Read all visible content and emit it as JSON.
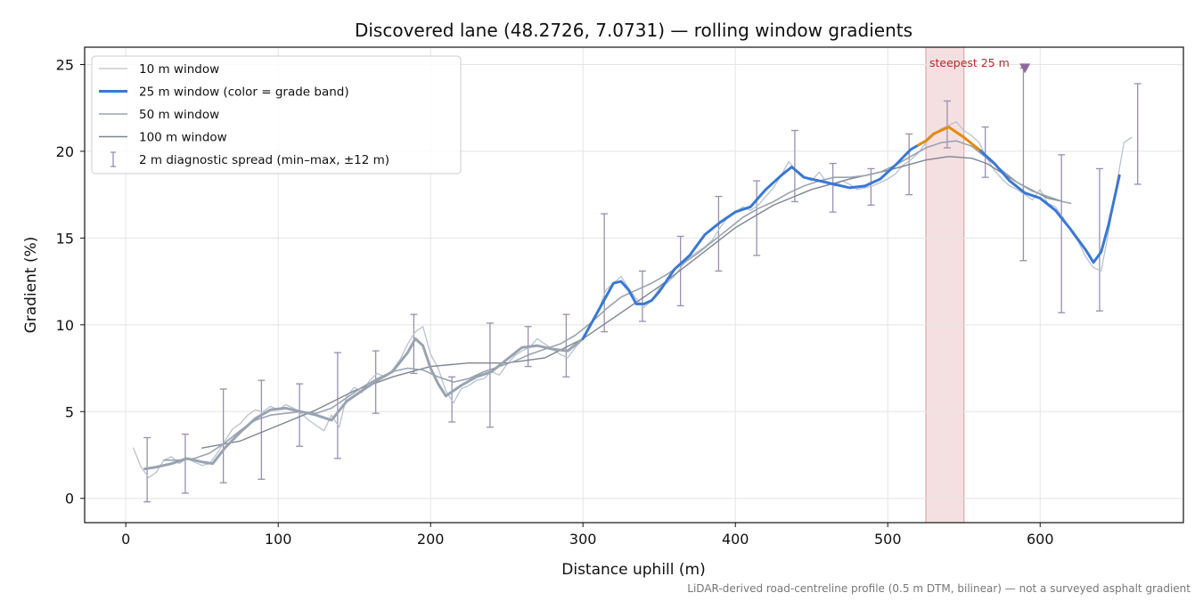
{
  "chart_data": {
    "type": "line",
    "title": "Discovered lane (48.2726, 7.0731) — rolling window gradients",
    "xlabel": "Distance uphill (m)",
    "ylabel": "Gradient (%)",
    "xlim": [
      -27,
      694
    ],
    "ylim": [
      -1.4,
      26
    ],
    "x_ticks": [
      0,
      100,
      200,
      300,
      400,
      500,
      600
    ],
    "y_ticks": [
      0,
      5,
      10,
      15,
      20,
      25
    ],
    "grid": true,
    "legend_position": "top-left",
    "footnote": "LiDAR-derived road-centreline profile (0.5 m DTM, bilinear) — not a surveyed asphalt gradient",
    "highlight": {
      "x0": 525,
      "x1": 550,
      "label": "steepest 25 m",
      "color": "#e8b4b8"
    },
    "marker": {
      "x": 590,
      "y": 24.8,
      "color": "#8e6a9a"
    },
    "colors": {
      "w10": "#b9c2cf",
      "w25": "#3a78d4",
      "w25_gray": "#99a3b1",
      "w25_orange": "#e38b0b",
      "w50": "#9aa3b0",
      "w100": "#7d8591",
      "spread": "#9a8fb0"
    },
    "series": [
      {
        "name": "10 m window",
        "key": "w10",
        "x": [
          5,
          10,
          15,
          20,
          25,
          30,
          35,
          40,
          45,
          50,
          55,
          60,
          65,
          70,
          75,
          80,
          85,
          90,
          95,
          100,
          105,
          110,
          115,
          120,
          125,
          130,
          135,
          140,
          145,
          150,
          155,
          160,
          165,
          170,
          175,
          180,
          185,
          190,
          195,
          200,
          205,
          210,
          215,
          220,
          225,
          230,
          235,
          240,
          245,
          250,
          255,
          260,
          265,
          270,
          275,
          280,
          285,
          290,
          295,
          300,
          305,
          310,
          315,
          320,
          325,
          330,
          335,
          340,
          345,
          350,
          355,
          360,
          365,
          370,
          375,
          380,
          385,
          390,
          395,
          400,
          405,
          410,
          415,
          420,
          425,
          430,
          435,
          440,
          445,
          450,
          455,
          460,
          465,
          470,
          475,
          480,
          485,
          490,
          495,
          500,
          505,
          510,
          515,
          520,
          525,
          530,
          535,
          540,
          545,
          550,
          555,
          560,
          565,
          570,
          575,
          580,
          585,
          590,
          595,
          600,
          605,
          610,
          615,
          620,
          625,
          630,
          635,
          640,
          645,
          650,
          655,
          660
        ],
        "y": [
          2.9,
          1.8,
          1.2,
          1.5,
          2.2,
          2.4,
          2.0,
          2.3,
          2.1,
          1.9,
          2.0,
          2.6,
          3.3,
          4.0,
          4.3,
          4.8,
          5.1,
          5.0,
          5.3,
          5.1,
          5.4,
          5.2,
          4.9,
          4.5,
          4.2,
          3.9,
          4.8,
          4.1,
          5.9,
          6.4,
          6.1,
          6.8,
          7.2,
          7.0,
          7.4,
          8.0,
          8.9,
          9.6,
          9.9,
          8.3,
          7.5,
          6.2,
          5.5,
          6.3,
          6.5,
          6.8,
          6.9,
          7.3,
          7.1,
          7.7,
          8.2,
          8.5,
          8.7,
          9.2,
          8.9,
          8.6,
          8.3,
          8.1,
          8.7,
          9.2,
          10.1,
          10.8,
          12.0,
          12.4,
          12.8,
          12.1,
          11.5,
          11.0,
          11.4,
          12.1,
          12.4,
          12.8,
          13.4,
          13.9,
          14.2,
          14.5,
          14.9,
          15.6,
          16.2,
          16.5,
          16.8,
          16.6,
          16.9,
          17.4,
          17.9,
          18.6,
          19.4,
          18.9,
          18.5,
          18.3,
          18.8,
          18.2,
          18.0,
          18.3,
          18.1,
          17.8,
          17.9,
          18.0,
          18.2,
          18.4,
          18.7,
          19.2,
          19.5,
          19.9,
          20.5,
          20.9,
          21.3,
          21.5,
          21.7,
          21.2,
          20.9,
          20.5,
          19.6,
          18.9,
          18.4,
          18.0,
          17.8,
          17.5,
          17.2,
          17.8,
          17.0,
          16.8,
          16.2,
          15.4,
          14.8,
          13.9,
          13.3,
          13.1,
          15.4,
          18.0,
          20.5,
          20.8
        ]
      },
      {
        "name": "25 m window (color = grade band)",
        "key": "w25",
        "x": [
          12.5,
          20,
          30,
          40,
          50,
          57,
          65,
          75,
          85,
          95,
          105,
          115,
          125,
          135,
          145,
          155,
          165,
          175,
          185,
          190,
          195,
          200,
          205,
          210,
          215,
          220,
          230,
          240,
          250,
          260,
          270,
          280,
          290,
          300,
          310,
          320,
          325,
          330,
          335,
          340,
          345,
          350,
          360,
          370,
          380,
          390,
          400,
          410,
          420,
          430,
          437,
          445,
          455,
          465,
          475,
          485,
          495,
          505,
          515,
          525,
          530,
          540,
          550,
          560,
          570,
          575,
          580,
          590,
          600,
          610,
          620,
          630,
          635,
          640,
          645,
          652
        ],
        "y": [
          1.7,
          1.8,
          2.0,
          2.3,
          2.1,
          2.0,
          2.9,
          3.8,
          4.6,
          5.1,
          5.2,
          5.0,
          4.8,
          4.5,
          5.6,
          6.2,
          6.8,
          7.3,
          8.4,
          9.2,
          8.8,
          7.5,
          6.6,
          5.9,
          6.2,
          6.5,
          7.0,
          7.3,
          8.0,
          8.7,
          8.8,
          8.6,
          8.5,
          9.2,
          10.8,
          12.4,
          12.5,
          12.0,
          11.2,
          11.2,
          11.4,
          11.9,
          13.2,
          14.0,
          15.2,
          15.9,
          16.5,
          16.8,
          17.8,
          18.6,
          19.1,
          18.5,
          18.3,
          18.1,
          17.9,
          18.0,
          18.4,
          19.2,
          20.1,
          20.6,
          21.0,
          21.4,
          20.8,
          20.1,
          19.3,
          18.8,
          18.3,
          17.6,
          17.3,
          16.6,
          15.5,
          14.3,
          13.6,
          14.2,
          15.8,
          18.6
        ],
        "gray_until": 300,
        "orange_range": [
          520,
          561
        ]
      },
      {
        "name": "50 m window",
        "key": "w50",
        "x": [
          25,
          35,
          45,
          55,
          65,
          75,
          85,
          95,
          105,
          115,
          125,
          135,
          145,
          155,
          165,
          175,
          185,
          195,
          205,
          215,
          225,
          235,
          245,
          255,
          265,
          275,
          285,
          295,
          305,
          315,
          325,
          335,
          345,
          355,
          365,
          375,
          385,
          395,
          405,
          415,
          425,
          435,
          445,
          455,
          465,
          475,
          485,
          495,
          505,
          515,
          525,
          535,
          545,
          555,
          565,
          575,
          585,
          595,
          605,
          615,
          620
        ],
        "y": [
          2.2,
          2.2,
          2.3,
          2.6,
          3.2,
          3.9,
          4.5,
          4.8,
          4.9,
          5.0,
          4.9,
          5.2,
          5.8,
          6.4,
          6.9,
          7.3,
          7.5,
          7.4,
          7.0,
          6.7,
          6.9,
          7.3,
          7.6,
          7.9,
          8.3,
          8.6,
          8.9,
          9.4,
          10.1,
          10.9,
          11.6,
          12.0,
          12.4,
          12.9,
          13.5,
          14.1,
          14.8,
          15.5,
          16.2,
          16.7,
          17.1,
          17.6,
          18.0,
          18.3,
          18.5,
          18.5,
          18.6,
          18.8,
          19.2,
          19.7,
          20.2,
          20.5,
          20.6,
          20.3,
          19.6,
          18.9,
          18.2,
          17.7,
          17.4,
          17.1,
          17.0
        ]
      },
      {
        "name": "100 m window",
        "key": "w100",
        "x": [
          50,
          75,
          100,
          125,
          150,
          175,
          200,
          225,
          250,
          275,
          300,
          325,
          350,
          375,
          400,
          425,
          450,
          475,
          500,
          525,
          540,
          555,
          565,
          585,
          605,
          615
        ],
        "y": [
          2.9,
          3.3,
          4.2,
          5.1,
          6.2,
          7.0,
          7.6,
          7.8,
          7.8,
          8.1,
          9.2,
          10.7,
          12.2,
          13.9,
          15.6,
          16.9,
          17.8,
          18.4,
          18.9,
          19.5,
          19.7,
          19.6,
          19.3,
          18.2,
          17.3,
          17.1
        ]
      }
    ],
    "spread": {
      "name": "2 m diagnostic spread (min–max, ±12 m)",
      "x": [
        14,
        39,
        64,
        89,
        114,
        139,
        164,
        189,
        214,
        239,
        264,
        289,
        314,
        339,
        364,
        389,
        414,
        439,
        464,
        489,
        514,
        539,
        564,
        589,
        614,
        639,
        664
      ],
      "low": [
        -0.2,
        0.3,
        0.9,
        1.1,
        3.0,
        2.3,
        4.9,
        7.2,
        4.4,
        4.1,
        7.6,
        7.0,
        9.6,
        10.2,
        11.1,
        13.1,
        14.0,
        17.1,
        16.5,
        16.9,
        17.5,
        20.2,
        18.5,
        13.7,
        10.7,
        10.8,
        18.1
      ],
      "high": [
        3.5,
        3.7,
        6.3,
        6.8,
        6.6,
        8.4,
        8.5,
        10.6,
        7.0,
        10.1,
        9.9,
        10.6,
        16.4,
        13.1,
        15.1,
        17.4,
        18.3,
        21.2,
        19.3,
        19.0,
        21.0,
        22.9,
        21.4,
        24.8,
        19.8,
        19.0,
        23.9
      ]
    }
  }
}
